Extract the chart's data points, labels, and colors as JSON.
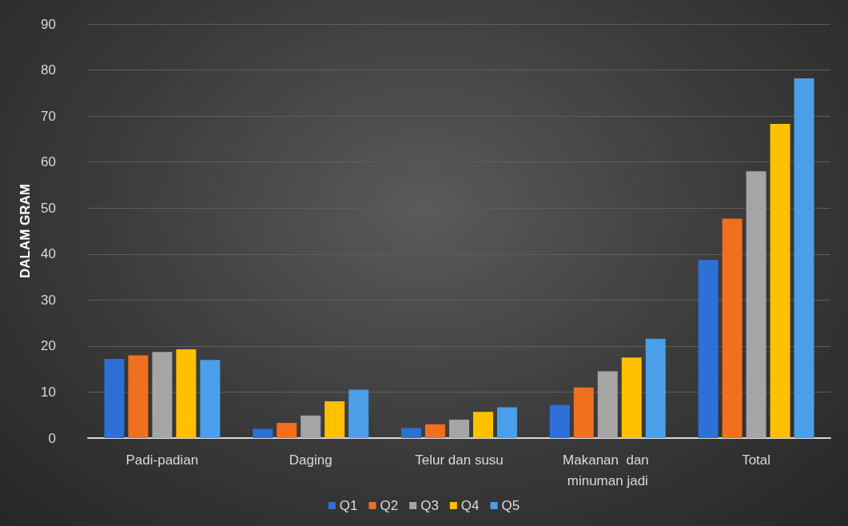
{
  "chart_data": {
    "type": "bar",
    "ylabel": "DALAM GRAM",
    "categories": [
      "Padi-padian",
      "Daging",
      "Telur dan susu",
      "Makanan  dan minuman jadi",
      "Total"
    ],
    "series": [
      {
        "name": "Q1",
        "color": "#2e6fd8",
        "values": [
          17.2,
          2,
          2.2,
          7.2,
          38.7
        ]
      },
      {
        "name": "Q2",
        "color": "#f07020",
        "values": [
          18,
          3.3,
          3,
          11,
          47.7
        ]
      },
      {
        "name": "Q3",
        "color": "#a5a5a5",
        "values": [
          18.7,
          4.9,
          4,
          14.5,
          58
        ]
      },
      {
        "name": "Q4",
        "color": "#ffc000",
        "values": [
          19.3,
          8,
          5.7,
          17.5,
          68.3
        ]
      },
      {
        "name": "Q5",
        "color": "#4a9fe8",
        "values": [
          17,
          10.5,
          6.7,
          21.6,
          78.2
        ]
      }
    ],
    "ylim": [
      0,
      90
    ],
    "yticks": [
      0,
      10,
      20,
      30,
      40,
      50,
      60,
      70,
      80,
      90
    ],
    "grid": "y",
    "legend": "bottom"
  }
}
